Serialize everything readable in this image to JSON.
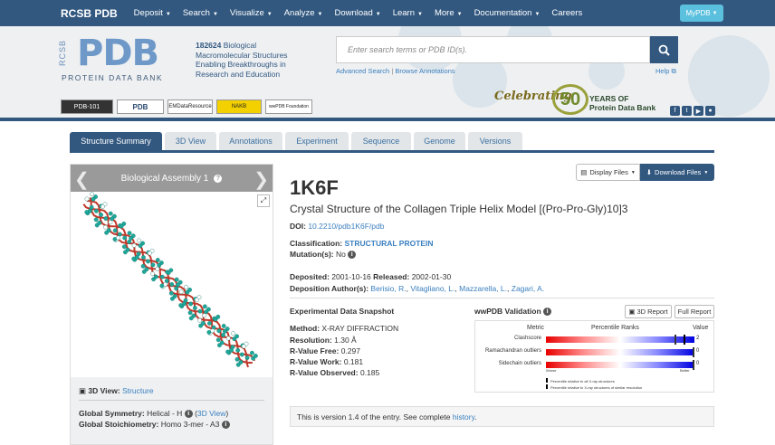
{
  "nav": {
    "brand": "RCSB PDB",
    "items": [
      "Deposit",
      "Search",
      "Visualize",
      "Analyze",
      "Download",
      "Learn",
      "More",
      "Documentation",
      "Careers"
    ],
    "dropdown_items": [
      true,
      true,
      true,
      true,
      true,
      true,
      true,
      true,
      false
    ],
    "mypdb": "MyPDB"
  },
  "header": {
    "logo_rcsb": "RCSB",
    "logo_pdb": "PDB",
    "logo_sub": "PROTEIN DATA BANK",
    "structure_count": "182624",
    "tagline": "Biological Macromolecular Structures Enabling Breakthroughs in Research and Education",
    "search_placeholder": "Enter search terms or PDB ID(s).",
    "advanced_search": "Advanced Search",
    "sep": "|",
    "browse_annotations": "Browse Annotations",
    "help": "Help",
    "partners": [
      "PDB-101",
      "PDB",
      "EMDataResource",
      "NAKB",
      "wwPDB Foundation"
    ],
    "celebrating": "Celebrating",
    "fifty": "50",
    "years_line1": "YEARS OF",
    "years_line2": "Protein Data Bank"
  },
  "tabs": [
    "Structure Summary",
    "3D View",
    "Annotations",
    "Experiment",
    "Sequence",
    "Genome",
    "Versions"
  ],
  "left_panel": {
    "assembly_title": "Biological Assembly 1",
    "view3d_label": "3D View:",
    "view3d_link": "Structure",
    "global_symmetry_label": "Global Symmetry:",
    "global_symmetry_value": "Helical - H",
    "global_symmetry_link": "3D View",
    "global_stoich_label": "Global Stoichiometry:",
    "global_stoich_value": "Homo 3-mer - A3"
  },
  "buttons": {
    "display_files": "Display Files",
    "download_files": "Download Files",
    "report_3d": "3D Report",
    "full_report": "Full Report"
  },
  "entry": {
    "id": "1K6F",
    "title": "Crystal Structure of the Collagen Triple Helix Model [(Pro-Pro-Gly)10]3",
    "doi_label": "DOI:",
    "doi": "10.2210/pdb1K6F/pdb",
    "classification_label": "Classification:",
    "classification": "STRUCTURAL PROTEIN",
    "mutations_label": "Mutation(s):",
    "mutations": "No",
    "deposited_label": "Deposited:",
    "deposited": "2001-10-16",
    "released_label": "Released:",
    "released": "2002-01-30",
    "authors_label": "Deposition Author(s):",
    "authors": [
      "Berisio, R.",
      "Vitagliano, L.",
      "Mazzarella, L.",
      "Zagari, A."
    ]
  },
  "experimental": {
    "heading": "Experimental Data Snapshot",
    "method_label": "Method:",
    "method": "X-RAY DIFFRACTION",
    "resolution_label": "Resolution:",
    "resolution": "1.30 Å",
    "rfree_label": "R-Value Free:",
    "rfree": "0.297",
    "rwork_label": "R-Value Work:",
    "rwork": "0.181",
    "robs_label": "R-Value Observed:",
    "robs": "0.185"
  },
  "validation": {
    "heading": "wwPDB Validation",
    "col_metric": "Metric",
    "col_percentile": "Percentile Ranks",
    "col_value": "Value",
    "rows": [
      {
        "metric": "Clashscore",
        "value": "2",
        "percentile": 0.94,
        "percentile_similar": 0.88
      },
      {
        "metric": "Ramachandran outliers",
        "value": "0",
        "percentile": 1.0,
        "percentile_similar": 1.0
      },
      {
        "metric": "Sidechain outliers",
        "value": "0",
        "percentile": 1.0,
        "percentile_similar": 1.0
      }
    ],
    "worse": "Worse",
    "better": "Better",
    "legend_all": "Percentile relative to all X-ray structures",
    "legend_similar": "Percentile relative to X-ray structures of similar resolution"
  },
  "version_note": {
    "text": "This is version 1.4 of the entry. See complete",
    "link": "history",
    "end": "."
  }
}
